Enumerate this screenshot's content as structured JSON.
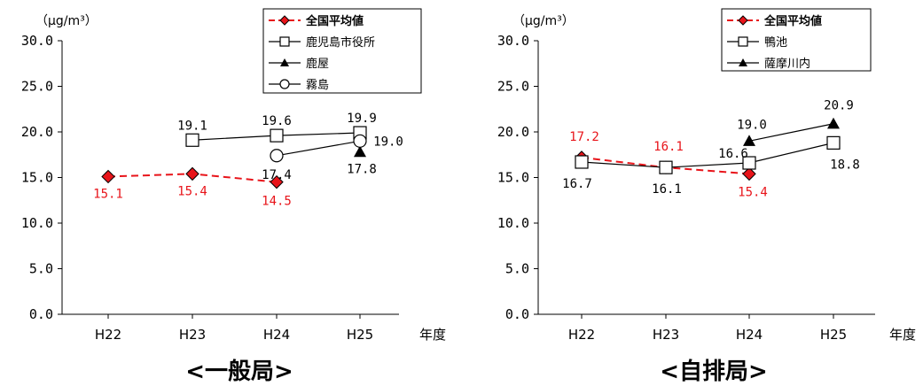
{
  "chart_data": [
    {
      "type": "line",
      "title": "<一般局>",
      "unit": "（μg/m³）",
      "xlabel": "年度",
      "categories": [
        "H22",
        "H23",
        "H24",
        "H25"
      ],
      "ylim": [
        0,
        30
      ],
      "yticks": [
        "0.0",
        "5.0",
        "10.0",
        "15.0",
        "20.0",
        "25.0",
        "30.0"
      ],
      "legend_position": "top-right",
      "series": [
        {
          "name": "全国平均値",
          "values": [
            15.1,
            15.4,
            14.5,
            null
          ],
          "labels": [
            "15.1",
            "15.4",
            "14.5",
            ""
          ],
          "color": "#e8141a",
          "dashed": true,
          "marker": "diamond-filled"
        },
        {
          "name": "鹿児島市役所",
          "values": [
            null,
            19.1,
            19.6,
            19.9
          ],
          "labels": [
            "",
            "19.1",
            "19.6",
            "19.9"
          ],
          "color": "#000000",
          "dashed": false,
          "marker": "square-open"
        },
        {
          "name": "鹿屋",
          "values": [
            null,
            null,
            null,
            17.8
          ],
          "labels": [
            "",
            "",
            "",
            "17.8"
          ],
          "color": "#000000",
          "dashed": false,
          "marker": "triangle-filled"
        },
        {
          "name": "霧島",
          "values": [
            null,
            null,
            17.4,
            19.0
          ],
          "labels": [
            "",
            "",
            "17.4",
            "19.0"
          ],
          "color": "#000000",
          "dashed": false,
          "marker": "circle-open"
        }
      ]
    },
    {
      "type": "line",
      "title": "<自排局>",
      "unit": "（μg/m³）",
      "xlabel": "年度",
      "categories": [
        "H22",
        "H23",
        "H24",
        "H25"
      ],
      "ylim": [
        0,
        30
      ],
      "yticks": [
        "0.0",
        "5.0",
        "10.0",
        "15.0",
        "20.0",
        "25.0",
        "30.0"
      ],
      "legend_position": "top-left",
      "series": [
        {
          "name": "全国平均値",
          "values": [
            17.2,
            16.1,
            15.4,
            null
          ],
          "labels": [
            "17.2",
            "16.1",
            "15.4",
            ""
          ],
          "color": "#e8141a",
          "dashed": true,
          "marker": "diamond-filled"
        },
        {
          "name": "鴨池",
          "values": [
            16.7,
            16.1,
            16.6,
            18.8
          ],
          "labels": [
            "16.7",
            "16.1",
            "16.6",
            "18.8"
          ],
          "color": "#000000",
          "dashed": false,
          "marker": "square-open"
        },
        {
          "name": "薩摩川内",
          "values": [
            null,
            null,
            19.0,
            20.9
          ],
          "labels": [
            "",
            "",
            "19.0",
            "20.9"
          ],
          "color": "#000000",
          "dashed": false,
          "marker": "triangle-filled"
        }
      ]
    }
  ]
}
